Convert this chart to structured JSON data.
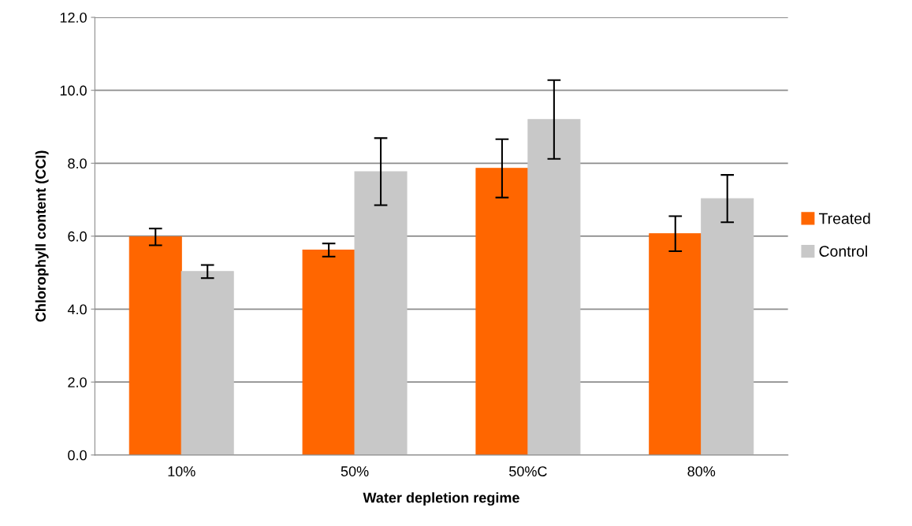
{
  "chart_data": {
    "type": "bar",
    "xlabel": "Water depletion regime",
    "ylabel": "Chlorophyll content (CCI)",
    "categories": [
      "10%",
      "50%",
      "50%C",
      "80%"
    ],
    "series": [
      {
        "name": "Treated",
        "color": "#ff6600",
        "values": [
          5.98,
          5.62,
          7.86,
          6.07
        ],
        "errors": [
          0.23,
          0.18,
          0.8,
          0.48
        ]
      },
      {
        "name": "Control",
        "color": "#c8c8c8",
        "values": [
          5.03,
          7.77,
          9.2,
          7.03
        ],
        "errors": [
          0.18,
          0.92,
          1.08,
          0.65
        ]
      }
    ],
    "ylim": [
      0,
      12
    ],
    "yticks": [
      {
        "value": 0,
        "label": "0.0"
      },
      {
        "value": 2,
        "label": "2.0"
      },
      {
        "value": 4,
        "label": "4.0"
      },
      {
        "value": 6,
        "label": "6.0"
      },
      {
        "value": 8,
        "label": "8.0"
      },
      {
        "value": 10,
        "label": "10.0"
      },
      {
        "value": 12,
        "label": "12.0"
      }
    ],
    "grid": "y",
    "legend": "right"
  }
}
